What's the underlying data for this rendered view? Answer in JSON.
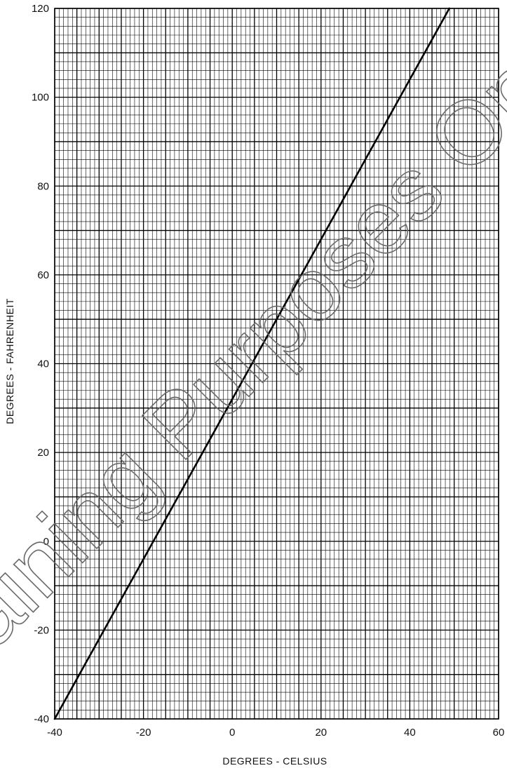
{
  "chart_data": {
    "type": "line",
    "xlabel": "DEGREES - CELSIUS",
    "ylabel": "DEGREES - FAHRENHEIT",
    "xlim": [
      -40,
      60
    ],
    "ylim": [
      -40,
      120
    ],
    "xticks": [
      -40,
      -20,
      0,
      20,
      40,
      60
    ],
    "yticks": [
      -40,
      -20,
      0,
      20,
      40,
      60,
      80,
      100,
      120
    ],
    "grid": true,
    "grid_minor_step_x": 1,
    "grid_minor_step_y": 2,
    "series": [
      {
        "x": [
          -40,
          -30,
          -20,
          -10,
          0,
          10,
          20,
          30,
          40,
          48.9
        ],
        "y": [
          -40,
          -22,
          -4,
          14,
          32,
          50,
          68,
          86,
          104,
          120
        ],
        "color": "#000000"
      }
    ],
    "watermark": "Training Purposes Only"
  }
}
